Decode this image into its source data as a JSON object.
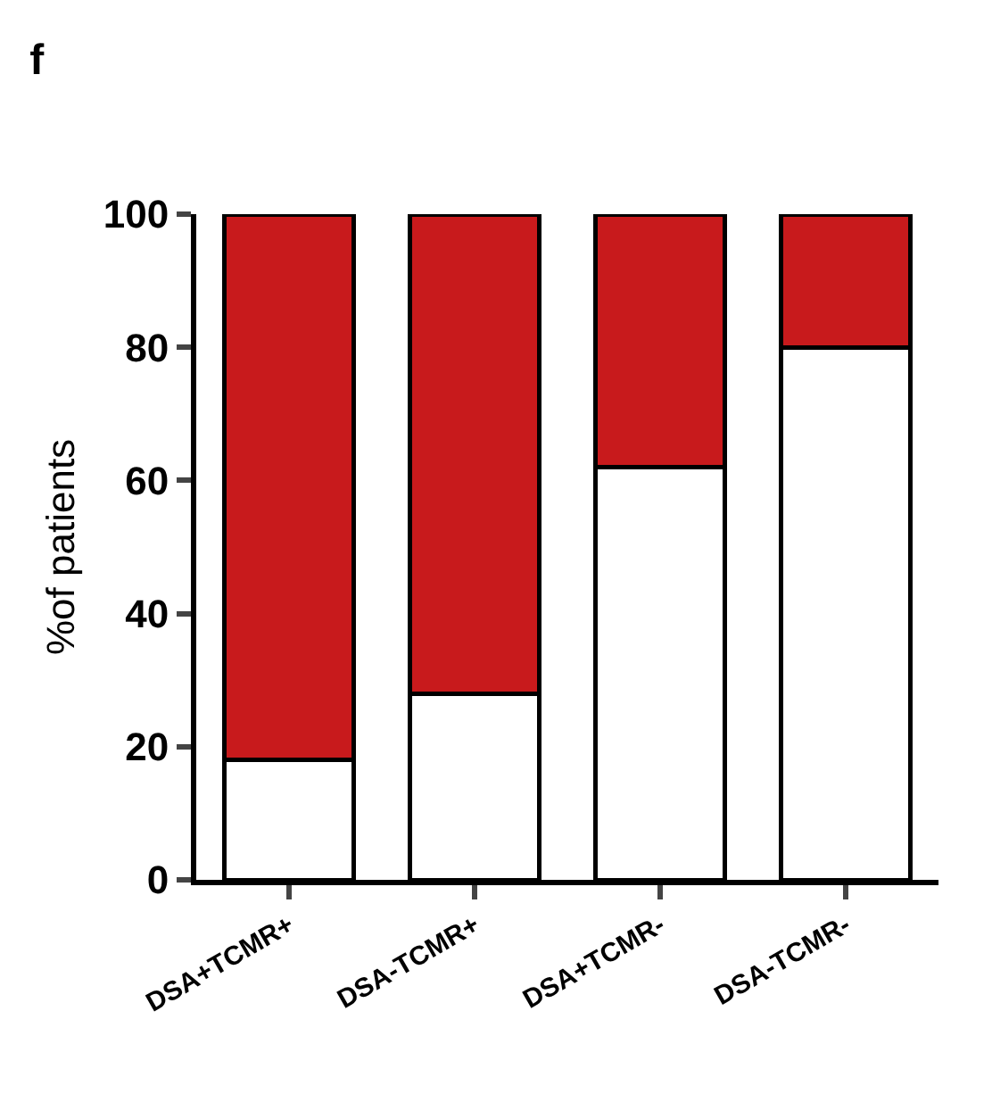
{
  "chart_data": {
    "type": "bar",
    "title": "f",
    "ylabel": "%of patients",
    "categories": [
      "DSA+TCMR+",
      "DSA-TCMR+",
      "DSA+TCMR-",
      "DSA-TCMR-"
    ],
    "stacked": true,
    "series": [
      {
        "color": "#ffffff",
        "values": [
          18,
          28,
          62,
          80
        ]
      },
      {
        "color": "#c81a1c",
        "values": [
          82,
          72,
          38,
          20
        ]
      }
    ],
    "ylim": [
      0,
      100
    ],
    "yticks": [
      0,
      20,
      40,
      60,
      80,
      100
    ]
  }
}
